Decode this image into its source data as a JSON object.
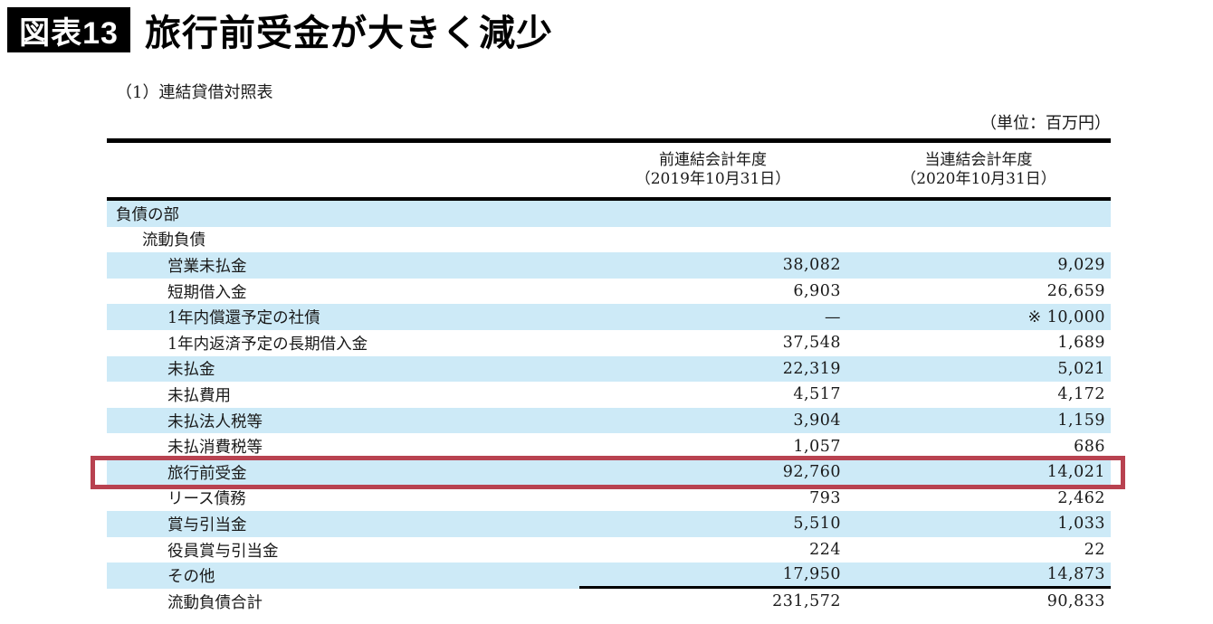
{
  "figure": {
    "badge": "図表13",
    "title": "旅行前受金が大きく減少"
  },
  "document": {
    "subtitle": "（1）連結貸借対照表",
    "unit_note": "（単位：百万円）"
  },
  "table": {
    "column_headers": [
      {
        "line1": "前連結会計年度",
        "line2": "（2019年10月31日）"
      },
      {
        "line1": "当連結会計年度",
        "line2": "（2020年10月31日）"
      }
    ],
    "rows": [
      {
        "label": "負債の部",
        "indent": 0,
        "prev": "",
        "curr": "",
        "shaded": true,
        "highlighted": false,
        "rule_below": false
      },
      {
        "label": "流動負債",
        "indent": 1,
        "prev": "",
        "curr": "",
        "shaded": false,
        "highlighted": false,
        "rule_below": false
      },
      {
        "label": "営業未払金",
        "indent": 2,
        "prev": "38,082",
        "curr": "9,029",
        "shaded": true,
        "highlighted": false,
        "rule_below": false
      },
      {
        "label": "短期借入金",
        "indent": 2,
        "prev": "6,903",
        "curr": "26,659",
        "shaded": false,
        "highlighted": false,
        "rule_below": false
      },
      {
        "label": "1年内償還予定の社債",
        "indent": 2,
        "prev": "—",
        "curr": "※ 10,000",
        "shaded": true,
        "highlighted": false,
        "rule_below": false
      },
      {
        "label": "1年内返済予定の長期借入金",
        "indent": 2,
        "prev": "37,548",
        "curr": "1,689",
        "shaded": false,
        "highlighted": false,
        "rule_below": false
      },
      {
        "label": "未払金",
        "indent": 2,
        "prev": "22,319",
        "curr": "5,021",
        "shaded": true,
        "highlighted": false,
        "rule_below": false
      },
      {
        "label": "未払費用",
        "indent": 2,
        "prev": "4,517",
        "curr": "4,172",
        "shaded": false,
        "highlighted": false,
        "rule_below": false
      },
      {
        "label": "未払法人税等",
        "indent": 2,
        "prev": "3,904",
        "curr": "1,159",
        "shaded": true,
        "highlighted": false,
        "rule_below": false
      },
      {
        "label": "未払消費税等",
        "indent": 2,
        "prev": "1,057",
        "curr": "686",
        "shaded": false,
        "highlighted": false,
        "rule_below": false
      },
      {
        "label": "旅行前受金",
        "indent": 2,
        "prev": "92,760",
        "curr": "14,021",
        "shaded": true,
        "highlighted": true,
        "rule_below": false
      },
      {
        "label": "リース債務",
        "indent": 2,
        "prev": "793",
        "curr": "2,462",
        "shaded": false,
        "highlighted": false,
        "rule_below": false
      },
      {
        "label": "賞与引当金",
        "indent": 2,
        "prev": "5,510",
        "curr": "1,033",
        "shaded": true,
        "highlighted": false,
        "rule_below": false
      },
      {
        "label": "役員賞与引当金",
        "indent": 2,
        "prev": "224",
        "curr": "22",
        "shaded": false,
        "highlighted": false,
        "rule_below": false
      },
      {
        "label": "その他",
        "indent": 2,
        "prev": "17,950",
        "curr": "14,873",
        "shaded": true,
        "highlighted": false,
        "rule_below": true
      },
      {
        "label": "流動負債合計",
        "indent": 2,
        "prev": "231,572",
        "curr": "90,833",
        "shaded": false,
        "highlighted": false,
        "rule_below": false
      }
    ]
  },
  "colors": {
    "row_shade": "#cdeaf7",
    "highlight_border": "#b84250",
    "badge_background": "#000000",
    "rule": "#000000"
  }
}
